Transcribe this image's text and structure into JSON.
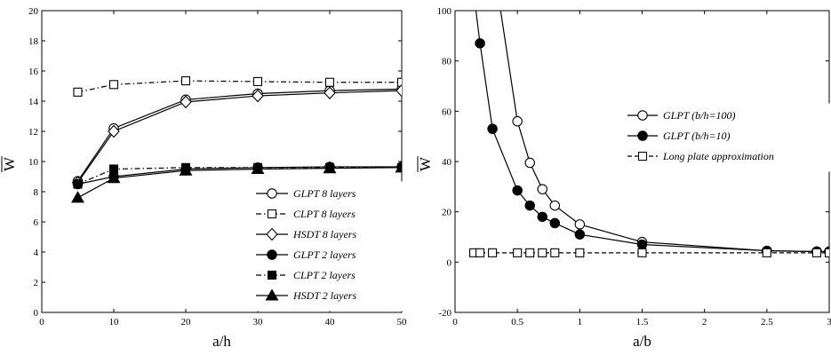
{
  "chart_data": [
    {
      "type": "line",
      "xlabel": "a/h",
      "ylabel": "W",
      "xlim": [
        0,
        50
      ],
      "ylim": [
        0,
        20
      ],
      "xticks": [
        "0",
        "10",
        "20",
        "30",
        "40",
        "50"
      ],
      "yticks": [
        "0",
        "2",
        "4",
        "6",
        "8",
        "10",
        "12",
        "14",
        "16",
        "18",
        "20"
      ],
      "legend_position": "lower-right",
      "series": [
        {
          "name": "GLPT 8 layers",
          "x": [
            5,
            10,
            20,
            30,
            40,
            50
          ],
          "values": [
            8.7,
            12.2,
            14.1,
            14.5,
            14.7,
            14.8
          ],
          "marker": "circle-open",
          "line": "solid"
        },
        {
          "name": "CLPT 8 layers",
          "x": [
            5,
            10,
            20,
            30,
            40,
            50
          ],
          "values": [
            14.6,
            15.1,
            15.35,
            15.3,
            15.25,
            15.25
          ],
          "marker": "square-open",
          "line": "dashdot"
        },
        {
          "name": "HSDT 8 layers",
          "x": [
            5,
            10,
            20,
            30,
            40,
            50
          ],
          "values": [
            8.6,
            12.0,
            13.95,
            14.35,
            14.55,
            14.7
          ],
          "marker": "diamond-open",
          "line": "solid"
        },
        {
          "name": "GLPT 2 layers",
          "x": [
            5,
            10,
            20,
            30,
            40,
            50
          ],
          "values": [
            8.5,
            9.0,
            9.5,
            9.6,
            9.65,
            9.65
          ],
          "marker": "circle-filled",
          "line": "solid"
        },
        {
          "name": "CLPT 2 layers",
          "x": [
            5,
            10,
            20,
            30,
            40,
            50
          ],
          "values": [
            8.5,
            9.5,
            9.6,
            9.6,
            9.6,
            9.6
          ],
          "marker": "square-filled",
          "line": "dashdot"
        },
        {
          "name": "HSDT 2 layers",
          "x": [
            5,
            10,
            20,
            30,
            40,
            50
          ],
          "values": [
            7.6,
            8.9,
            9.4,
            9.5,
            9.55,
            9.6
          ],
          "marker": "triangle-filled",
          "line": "solid"
        }
      ]
    },
    {
      "type": "line",
      "xlabel": "a/b",
      "ylabel": "W",
      "xlim": [
        0,
        3
      ],
      "ylim": [
        -20,
        100
      ],
      "xticks": [
        "0",
        "0.5",
        "1",
        "1.5",
        "2",
        "2.5",
        "3"
      ],
      "yticks": [
        "-20",
        "0",
        "20",
        "40",
        "60",
        "80",
        "100"
      ],
      "legend_position": "right-middle",
      "series": [
        {
          "name": "GLPT (b/h=100)",
          "x": [
            0.5,
            0.6,
            0.7,
            0.8,
            1.0,
            1.5,
            2.5,
            2.9,
            3.0
          ],
          "values": [
            56,
            39.5,
            29,
            22.5,
            15,
            8,
            4.5,
            4.2,
            4.2
          ],
          "marker": "circle-open",
          "line": "solid"
        },
        {
          "name": "GLPT (b/h=10)",
          "x": [
            0.2,
            0.3,
            0.5,
            0.6,
            0.7,
            0.8,
            1.0,
            1.5,
            2.5,
            2.9,
            3.0
          ],
          "values": [
            87,
            53,
            28.5,
            22.5,
            18,
            15.5,
            11,
            7,
            4.5,
            4.2,
            4.2
          ],
          "marker": "circle-filled",
          "line": "solid"
        },
        {
          "name": "Long plate approximation",
          "x": [
            0.15,
            0.2,
            0.3,
            0.5,
            0.6,
            0.7,
            0.8,
            1.0,
            1.5,
            2.5,
            2.9,
            3.0
          ],
          "values": [
            3.7,
            3.7,
            3.7,
            3.7,
            3.7,
            3.7,
            3.7,
            3.7,
            3.7,
            3.7,
            3.7,
            3.7
          ],
          "marker": "square-open",
          "line": "dashed"
        }
      ]
    }
  ]
}
